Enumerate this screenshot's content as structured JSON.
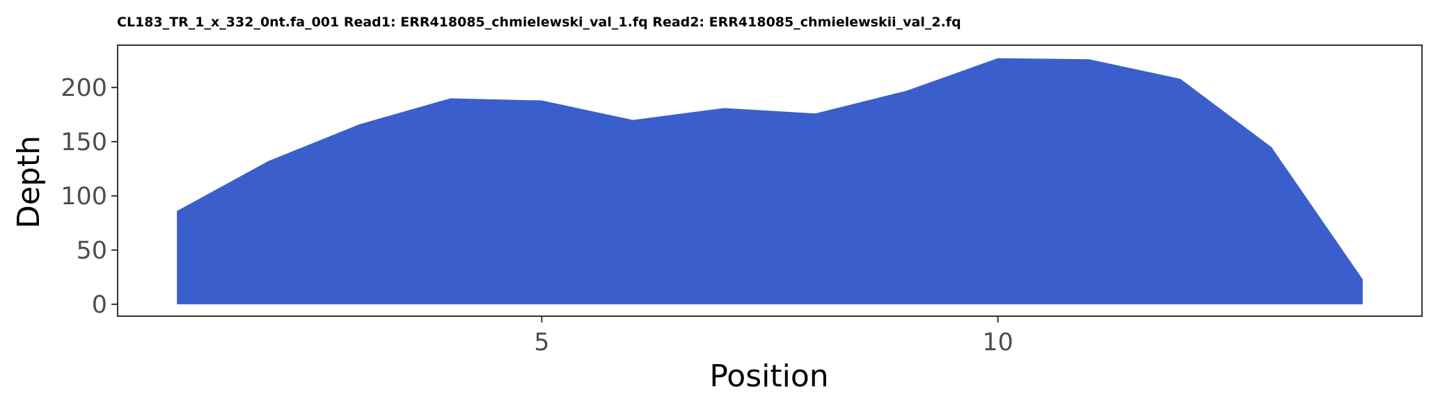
{
  "chart_data": {
    "type": "area",
    "title": "CL183_TR_1_x_332_0nt.fa_001 Read1: ERR418085_chmielewski_val_1.fq Read2: ERR418085_chmielewskii_val_2.fq",
    "xlabel": "Position",
    "ylabel": "Depth",
    "x": [
      1,
      2,
      3,
      4,
      5,
      6,
      7,
      8,
      9,
      10,
      11,
      12,
      13,
      14
    ],
    "series": [
      {
        "values": [
          86,
          132,
          166,
          190,
          188,
          170,
          181,
          176,
          197,
          227,
          226,
          208,
          145,
          23
        ]
      }
    ],
    "xlim": [
      0.35,
      14.65
    ],
    "ylim": [
      -11,
      239
    ],
    "xticks": [
      5,
      10
    ],
    "yticks": [
      0,
      50,
      100,
      150,
      200
    ],
    "xtick_labels": [
      "5",
      "10"
    ],
    "ytick_labels": [
      "0",
      "50",
      "100",
      "150",
      "200"
    ],
    "grid": false,
    "legend": "none",
    "colors": {
      "fill": "#3a5fcd",
      "border": "#333333",
      "tick_label": "#4d4d4d",
      "axis_label": "#000000"
    }
  }
}
